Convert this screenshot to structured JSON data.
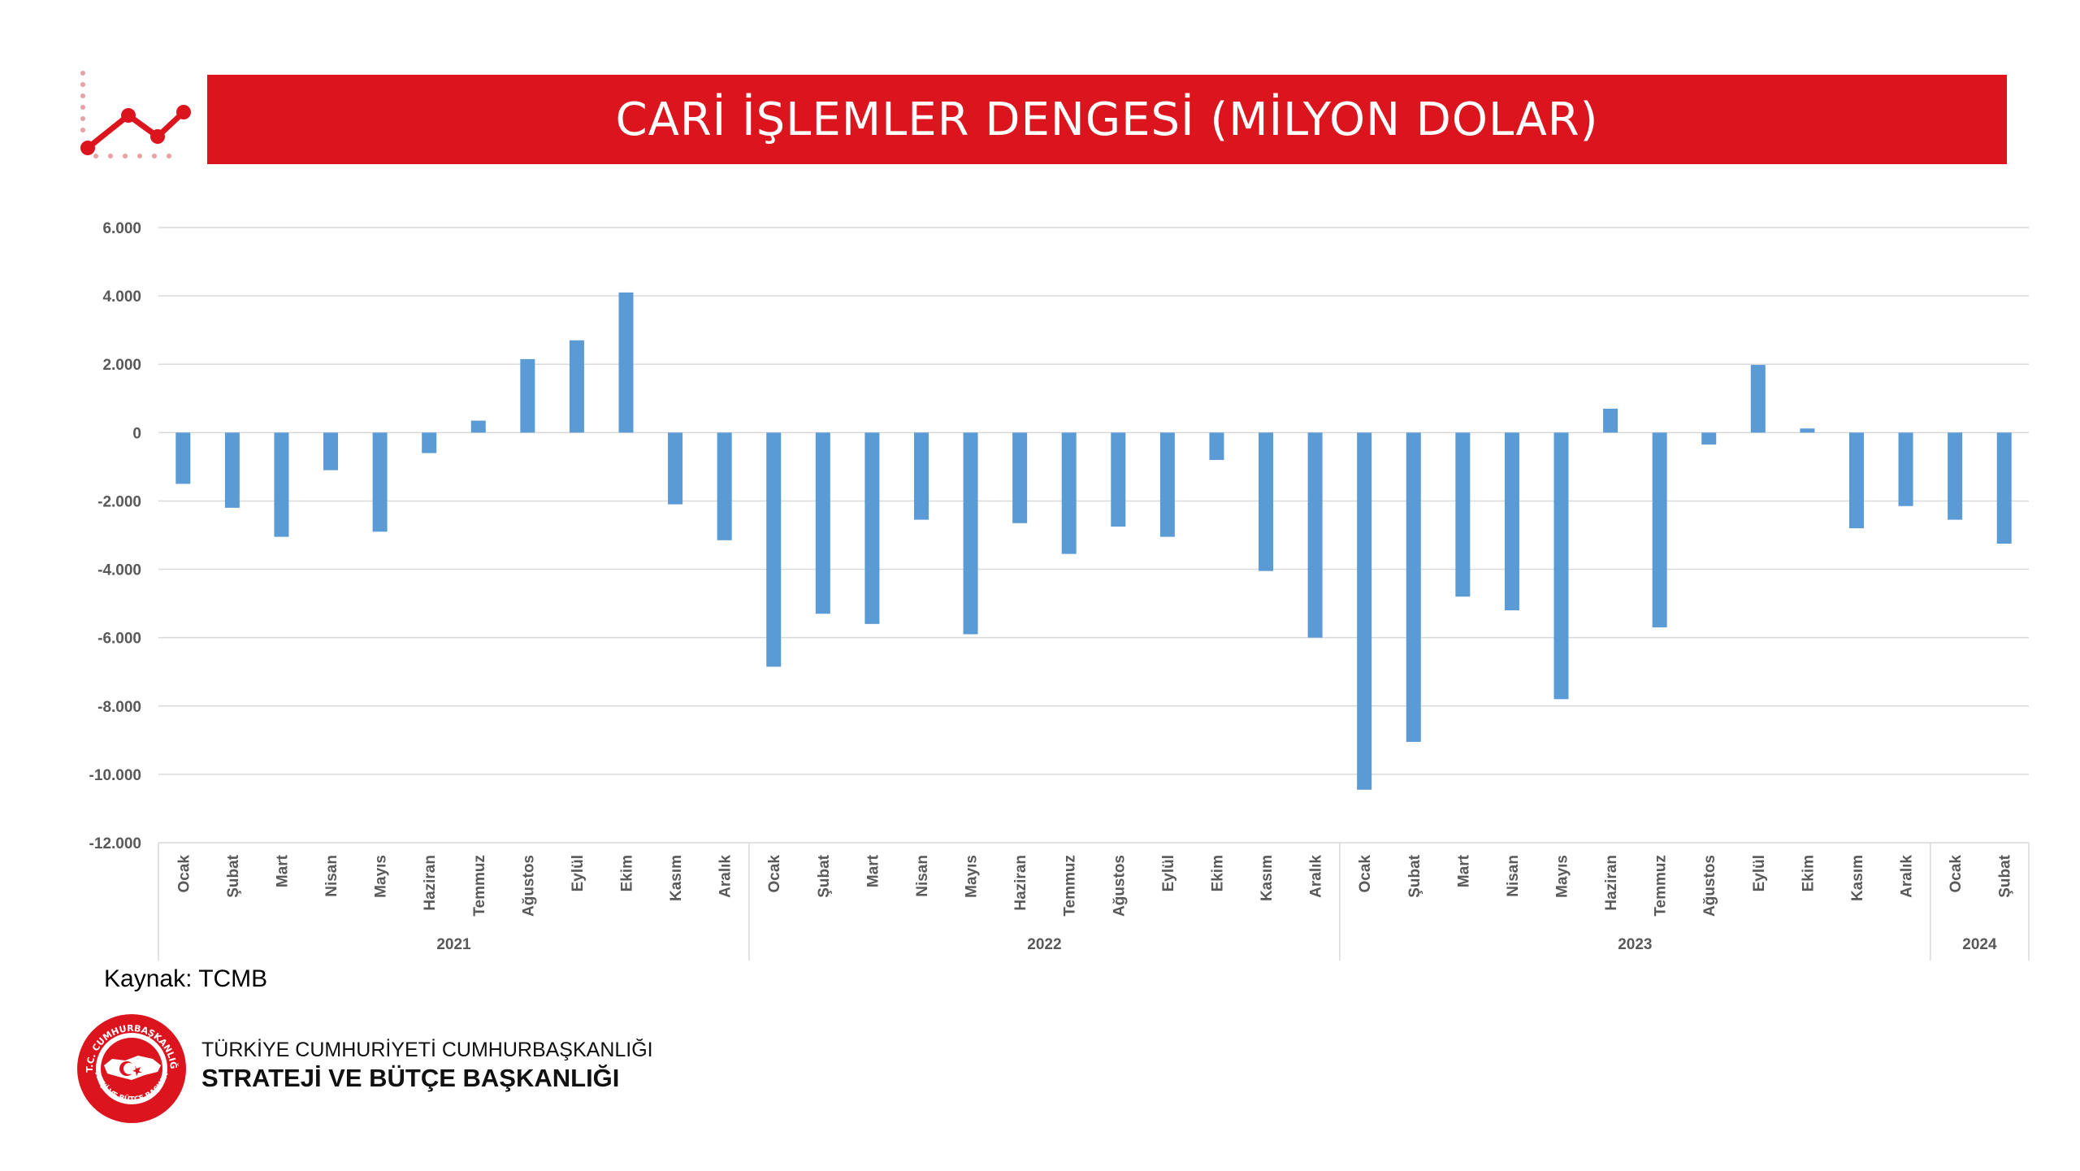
{
  "colors": {
    "brand_red": "#dc141e",
    "bar_blue": "#5b9bd5",
    "grid": "#d9d9d9",
    "tick_text": "#595959"
  },
  "header": {
    "title": "CARİ İŞLEMLER DENGESİ (MİLYON DOLAR)",
    "corner_icon": "trend-line-icon"
  },
  "chart_data": {
    "type": "bar",
    "title": "CARİ İŞLEMLER DENGESİ (MİLYON DOLAR)",
    "xlabel": "",
    "ylabel": "",
    "ylim": [
      -12000,
      6000
    ],
    "yticks": [
      6000,
      4000,
      2000,
      0,
      -2000,
      -4000,
      -6000,
      -8000,
      -10000,
      -12000
    ],
    "ytick_labels": [
      "6.000",
      "4.000",
      "2.000",
      "0",
      "-2.000",
      "-4.000",
      "-6.000",
      "-8.000",
      "-10.000",
      "-12.000"
    ],
    "grid": true,
    "legend": "none",
    "groups": [
      {
        "label": "2021",
        "count": 12
      },
      {
        "label": "2022",
        "count": 12
      },
      {
        "label": "2023",
        "count": 12
      },
      {
        "label": "2024",
        "count": 2
      }
    ],
    "categories": [
      "Ocak",
      "Şubat",
      "Mart",
      "Nisan",
      "Mayıs",
      "Haziran",
      "Temmuz",
      "Ağustos",
      "Eylül",
      "Ekim",
      "Kasım",
      "Aralık",
      "Ocak",
      "Şubat",
      "Mart",
      "Nisan",
      "Mayıs",
      "Haziran",
      "Temmuz",
      "Ağustos",
      "Eylül",
      "Ekim",
      "Kasım",
      "Aralık",
      "Ocak",
      "Şubat",
      "Mart",
      "Nisan",
      "Mayıs",
      "Haziran",
      "Temmuz",
      "Ağustos",
      "Eylül",
      "Ekim",
      "Kasım",
      "Aralık",
      "Ocak",
      "Şubat"
    ],
    "values": [
      -1500,
      -2200,
      -3050,
      -1100,
      -2900,
      -600,
      350,
      2150,
      2700,
      4100,
      -2100,
      -3150,
      -6850,
      -5300,
      -5600,
      -2550,
      -5900,
      -2650,
      -3550,
      -2750,
      -3050,
      -800,
      -4050,
      -6000,
      -10450,
      -9050,
      -4800,
      -5200,
      -7800,
      700,
      -5700,
      -350,
      1980,
      120,
      -2800,
      -2150,
      -2550,
      -3250
    ]
  },
  "footer": {
    "source": "Kaynak: TCMB",
    "org_line1": "TÜRKİYE CUMHURİYETİ CUMHURBAŞKANLIĞI",
    "org_line2": "STRATEJİ VE BÜTÇE BAŞKANLIĞI",
    "emblem_icon": "presidency-emblem-icon",
    "emblem_text_top": "T.C. CUMHURBAŞKANLIĞI",
    "emblem_text_bottom": "STRATEJİ VE BÜTÇE BAŞKANLIĞI"
  }
}
